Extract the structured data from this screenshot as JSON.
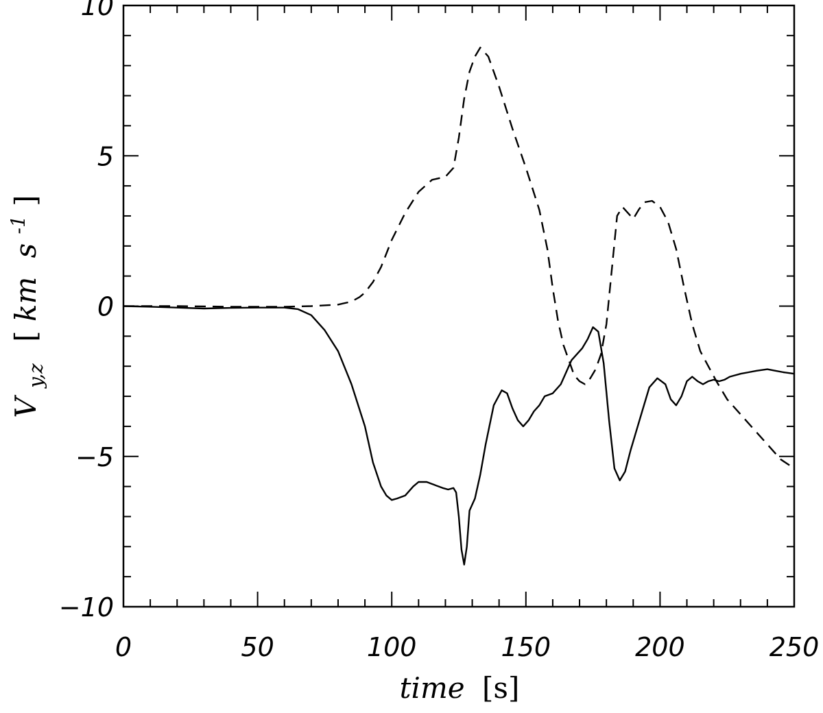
{
  "chart_data": {
    "type": "line",
    "xlabel": {
      "var": "time",
      "unit": "[s]"
    },
    "ylabel": {
      "var": "V",
      "sub": "y,z",
      "unit_open": "[",
      "unit_km": "km",
      "unit_s": "s",
      "unit_sup": "-1",
      "unit_close": "]"
    },
    "xlim": [
      0,
      250
    ],
    "ylim": [
      -10,
      10
    ],
    "xticks": [
      0,
      50,
      100,
      150,
      200,
      250
    ],
    "xtick_labels": [
      "0",
      "50",
      "100",
      "150",
      "200",
      "250"
    ],
    "yticks": [
      -10,
      -5,
      0,
      5,
      10
    ],
    "ytick_labels": [
      "−10",
      "−5",
      "0",
      "5",
      "10"
    ],
    "x_minor_step": 10,
    "y_minor_step": 1,
    "grid": false,
    "legend": "none",
    "series": [
      {
        "style": "solid",
        "x": [
          0,
          10,
          20,
          30,
          40,
          50,
          60,
          65,
          70,
          75,
          80,
          85,
          90,
          93,
          96,
          98,
          100,
          102,
          105,
          108,
          110,
          113,
          116,
          119,
          121,
          123,
          124,
          125,
          126,
          127,
          128,
          129,
          131,
          133,
          135,
          138,
          141,
          143,
          145,
          147,
          149,
          151,
          153,
          155,
          157,
          160,
          163,
          165,
          167,
          169,
          171,
          173,
          175,
          177,
          179,
          181,
          183,
          185,
          187,
          189,
          191,
          193,
          196,
          199,
          202,
          204,
          206,
          208,
          210,
          212,
          214,
          216,
          218,
          220,
          222,
          224,
          226,
          228,
          230,
          233,
          236,
          240,
          243,
          246,
          250
        ],
        "y": [
          0,
          -0.02,
          -0.05,
          -0.08,
          -0.06,
          -0.05,
          -0.05,
          -0.1,
          -0.3,
          -0.8,
          -1.5,
          -2.6,
          -4,
          -5.2,
          -6,
          -6.3,
          -6.45,
          -6.4,
          -6.3,
          -6,
          -5.85,
          -5.85,
          -5.95,
          -6.05,
          -6.1,
          -6.05,
          -6.2,
          -7,
          -8.1,
          -8.6,
          -8,
          -6.8,
          -6.4,
          -5.6,
          -4.6,
          -3.3,
          -2.8,
          -2.9,
          -3.4,
          -3.8,
          -4,
          -3.8,
          -3.5,
          -3.3,
          -3,
          -2.9,
          -2.6,
          -2.2,
          -1.8,
          -1.6,
          -1.4,
          -1.1,
          -0.7,
          -0.85,
          -1.9,
          -3.8,
          -5.4,
          -5.8,
          -5.5,
          -4.8,
          -4.2,
          -3.6,
          -2.7,
          -2.4,
          -2.6,
          -3.1,
          -3.3,
          -3.0,
          -2.5,
          -2.35,
          -2.5,
          -2.6,
          -2.5,
          -2.45,
          -2.5,
          -2.45,
          -2.35,
          -2.3,
          -2.25,
          -2.2,
          -2.15,
          -2.1,
          -2.15,
          -2.2,
          -2.25
        ]
      },
      {
        "style": "dashed",
        "x": [
          0,
          20,
          40,
          60,
          70,
          80,
          85,
          88,
          90,
          93,
          96,
          100,
          105,
          110,
          115,
          120,
          123,
          125,
          127,
          129,
          131,
          133,
          136,
          140,
          145,
          150,
          155,
          158,
          160,
          162,
          164,
          166,
          168,
          170,
          172,
          174,
          176,
          178,
          180,
          182,
          184,
          186,
          188,
          190,
          192,
          194,
          197,
          200,
          203,
          206,
          209,
          212,
          215,
          218,
          221,
          225,
          230,
          235,
          240,
          245,
          250
        ],
        "y": [
          0,
          0,
          -0.02,
          -0.02,
          0,
          0.05,
          0.15,
          0.3,
          0.45,
          0.8,
          1.3,
          2.2,
          3.1,
          3.8,
          4.2,
          4.3,
          4.6,
          5.6,
          6.9,
          7.8,
          8.3,
          8.6,
          8.3,
          7.3,
          5.9,
          4.6,
          3.2,
          1.9,
          0.6,
          -0.5,
          -1.3,
          -1.8,
          -2.3,
          -2.5,
          -2.6,
          -2.4,
          -2.1,
          -1.6,
          -0.6,
          1.2,
          3.0,
          3.3,
          3.1,
          2.9,
          3.2,
          3.45,
          3.5,
          3.3,
          2.8,
          1.9,
          0.6,
          -0.6,
          -1.5,
          -2.0,
          -2.5,
          -3.1,
          -3.6,
          -4.1,
          -4.6,
          -5.1,
          -5.4
        ]
      }
    ]
  }
}
